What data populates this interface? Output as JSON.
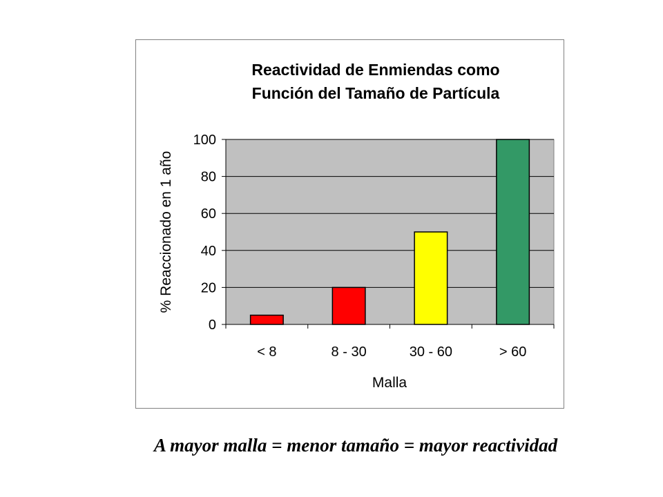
{
  "chart_data": {
    "type": "bar",
    "title_lines": [
      "Reactividad de Enmiendas como",
      "Función del Tamaño de Partícula"
    ],
    "xlabel": "Malla",
    "ylabel": "% Reaccionado en 1 año",
    "categories": [
      "< 8",
      "8 - 30",
      "30 - 60",
      "> 60"
    ],
    "values": [
      5,
      20,
      50,
      100
    ],
    "bar_colors": [
      "#ff0000",
      "#ff0000",
      "#ffff00",
      "#339966"
    ],
    "ylim": [
      0,
      100
    ],
    "yticks": [
      "0",
      "20",
      "40",
      "60",
      "80",
      "100"
    ],
    "plot_background": "#c0c0c0",
    "grid": true,
    "legend": "none"
  },
  "caption": "A mayor malla = menor tamaño = mayor reactividad"
}
